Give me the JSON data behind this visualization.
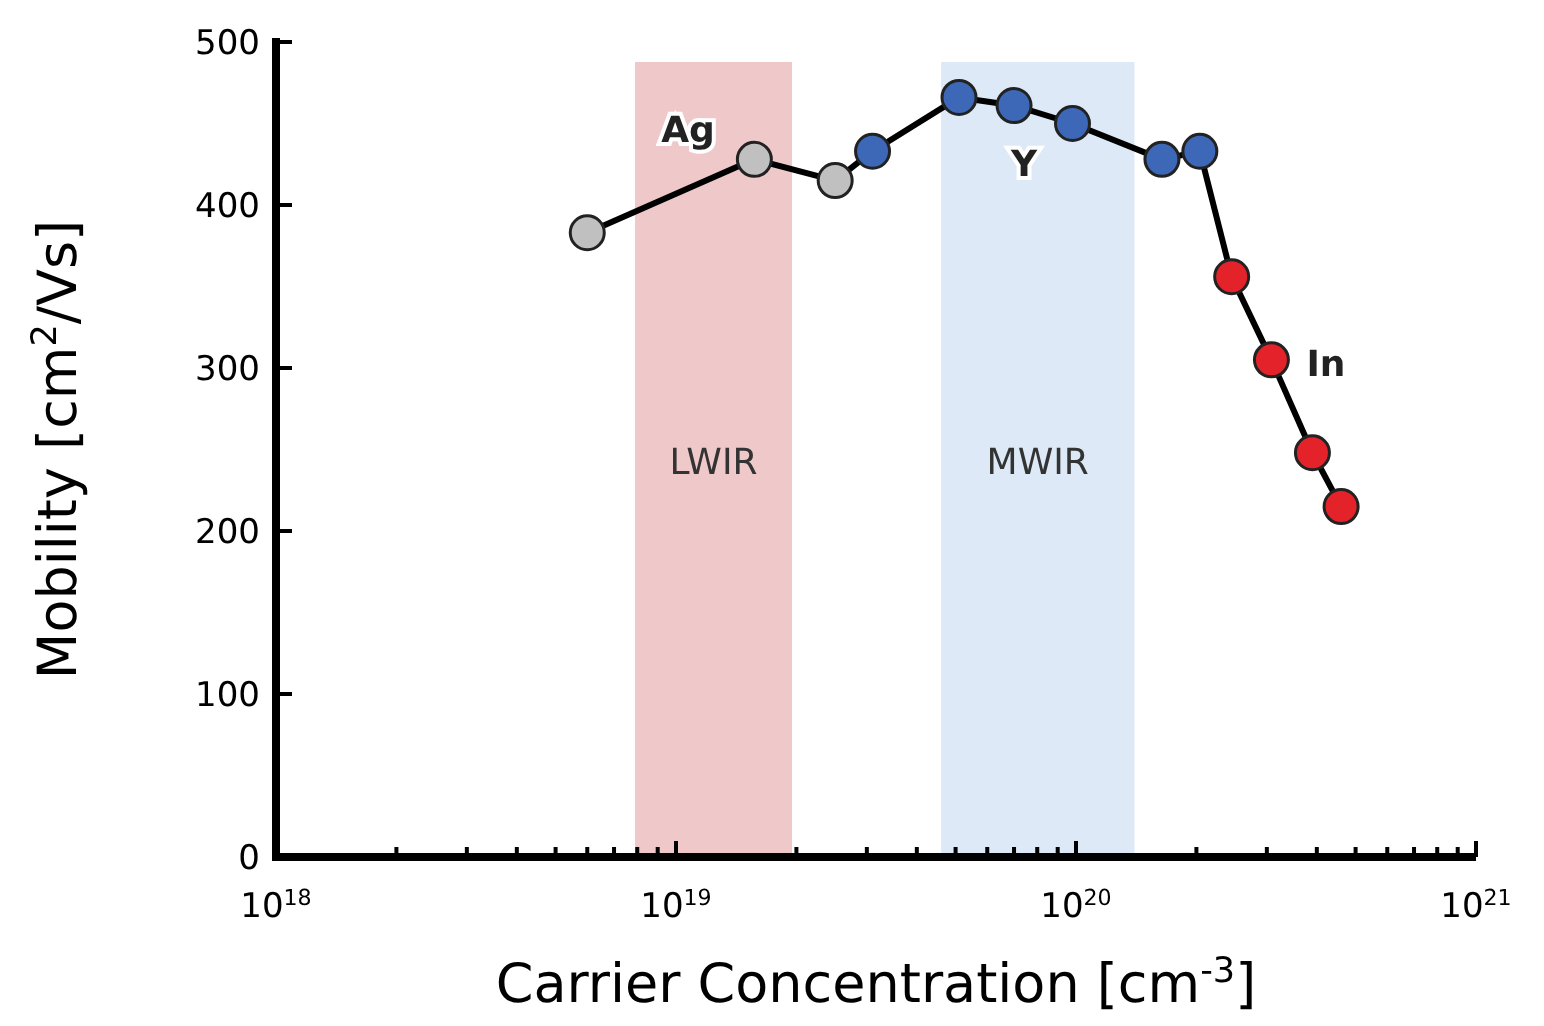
{
  "chart_data": {
    "type": "line",
    "xlabel": "Carrier Concentration [cm$^{-3}$]",
    "ylabel": "Mobility [cm$^{2}$/Vs]",
    "log": "x",
    "xlim": [
      1e+18,
      1e+21
    ],
    "ylim": [
      0,
      500
    ],
    "xticks": [
      {
        "value": 1e+18,
        "label": "10$^{18}$"
      },
      {
        "value": 2e+18,
        "label": null
      },
      {
        "value": 3e+18,
        "label": null
      },
      {
        "value": 4e+18,
        "label": null
      },
      {
        "value": 5e+18,
        "label": null
      },
      {
        "value": 6e+18,
        "label": null
      },
      {
        "value": 7e+18,
        "label": null
      },
      {
        "value": 8e+18,
        "label": null
      },
      {
        "value": 9e+18,
        "label": null
      },
      {
        "value": 1e+19,
        "label": "10$^{19}$"
      },
      {
        "value": 2e+19,
        "label": null
      },
      {
        "value": 3e+19,
        "label": null
      },
      {
        "value": 4e+19,
        "label": null
      },
      {
        "value": 5e+19,
        "label": null
      },
      {
        "value": 6e+19,
        "label": null
      },
      {
        "value": 7e+19,
        "label": null
      },
      {
        "value": 8e+19,
        "label": null
      },
      {
        "value": 9e+19,
        "label": null
      },
      {
        "value": 1e+20,
        "label": "10$^{20}$"
      },
      {
        "value": 2e+20,
        "label": null
      },
      {
        "value": 3e+20,
        "label": null
      },
      {
        "value": 4e+20,
        "label": null
      },
      {
        "value": 5e+20,
        "label": null
      },
      {
        "value": 6e+20,
        "label": null
      },
      {
        "value": 7e+20,
        "label": null
      },
      {
        "value": 8e+20,
        "label": null
      },
      {
        "value": 9e+20,
        "label": null
      },
      {
        "value": 1e+21,
        "label": "10$^{21}$"
      }
    ],
    "yticks": [
      0,
      100,
      200,
      300,
      400,
      500
    ],
    "grid": false,
    "marker": "circle",
    "line_style": "solid",
    "series": [
      {
        "color": "#000000",
        "x": [
          6e+18,
          1.57e+19,
          2.5e+19,
          3.1e+19,
          5.1e+19,
          7e+19,
          9.8e+19,
          1.64e+20,
          2.04e+20,
          2.45e+20,
          3.08e+20,
          3.9e+20,
          4.6e+20
        ],
        "values": [
          383,
          428,
          415,
          433,
          466,
          461,
          450,
          428,
          433,
          356,
          305,
          248,
          215
        ],
        "colors": [
          "#c0c0c0",
          "#c0c0c0",
          "#c0c0c0",
          "#3d68b8",
          "#3d68b8",
          "#3d68b8",
          "#3d68b8",
          "#3d68b8",
          "#3d68b8",
          "#e3222a",
          "#e3222a",
          "#e3222a",
          "#e3222a"
        ]
      }
    ],
    "bands": [
      {
        "axis": "x",
        "from": 7.9e+18,
        "to": 1.95e+19,
        "label": "LWIR",
        "color": "#efc8ca"
      },
      {
        "axis": "x",
        "from": 4.6e+19,
        "to": 1.4e+20,
        "label": "MWIR",
        "color": "#dde9f6"
      }
    ],
    "annotations": [
      "Ag",
      "Y",
      "In"
    ]
  }
}
